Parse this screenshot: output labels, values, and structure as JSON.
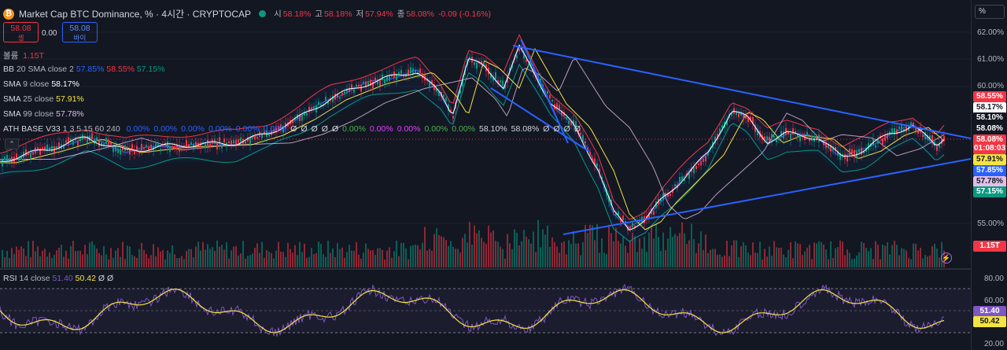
{
  "header": {
    "symbol_title": "Market Cap BTC Dominance, % · 4시간 · CRYPTOCAP",
    "ohlc": [
      {
        "label": "시",
        "value": "58.18%"
      },
      {
        "label": "고",
        "value": "58.18%"
      },
      {
        "label": "저",
        "value": "57.94%"
      },
      {
        "label": "종",
        "value": "58.08%"
      }
    ],
    "change": "-0.09 (-0.16%)",
    "sell": {
      "price": "58.08",
      "label": "셀"
    },
    "spread": "0.00",
    "buy": {
      "price": "58.08",
      "label": "바이"
    },
    "collapse_icon": "chevron-up-icon"
  },
  "indicators": {
    "volume": {
      "name": "볼륨",
      "value": "1.15T"
    },
    "bb": {
      "name": "BB",
      "params": "20 SMA close 2",
      "v1": "57.85%",
      "v2": "58.55%",
      "v3": "57.15%"
    },
    "sma9": {
      "name": "SMA",
      "params": "9 close",
      "value": "58.17%"
    },
    "sma25": {
      "name": "SMA",
      "params": "25 close",
      "value": "57.91%"
    },
    "sma99": {
      "name": "SMA",
      "params": "99 close",
      "value": "57.78%"
    },
    "ath": {
      "name": "ATH BASE V33",
      "params": "1 3 5 15 60 240",
      "values": [
        {
          "text": "0.00%",
          "color": "#2962ff"
        },
        {
          "text": "0.00%",
          "color": "#2962ff"
        },
        {
          "text": "0.00%",
          "color": "#2962ff"
        },
        {
          "text": "0.00%",
          "color": "#2962ff"
        },
        {
          "text": "0.00%",
          "color": "#2962ff"
        },
        {
          "text": "0.00%",
          "color": "#2962ff"
        },
        {
          "text": "Ø",
          "color": "#d1d4dc"
        },
        {
          "text": "Ø",
          "color": "#d1d4dc"
        },
        {
          "text": "Ø",
          "color": "#d1d4dc"
        },
        {
          "text": "Ø",
          "color": "#d1d4dc"
        },
        {
          "text": "Ø",
          "color": "#d1d4dc"
        },
        {
          "text": "0.00%",
          "color": "#4caf50"
        },
        {
          "text": "0.00%",
          "color": "#e040fb"
        },
        {
          "text": "0.00%",
          "color": "#e040fb"
        },
        {
          "text": "0.00%",
          "color": "#4caf50"
        },
        {
          "text": "0.00%",
          "color": "#4caf50"
        },
        {
          "text": "58.10%",
          "color": "#d1d4dc"
        },
        {
          "text": "58.08%",
          "color": "#d1d4dc"
        },
        {
          "text": "Ø",
          "color": "#d1d4dc"
        },
        {
          "text": "Ø",
          "color": "#d1d4dc"
        },
        {
          "text": "Ø",
          "color": "#d1d4dc"
        },
        {
          "text": "Ø",
          "color": "#d1d4dc"
        }
      ]
    },
    "rsi": {
      "name": "RSI",
      "params": "14 close",
      "v1": "51.40",
      "v2": "50.42",
      "extra": "Ø Ø"
    }
  },
  "price_scale": {
    "unit": "%",
    "ticks": [
      "62.00%",
      "61.00%",
      "60.00%",
      "55.00%"
    ],
    "labels": [
      {
        "text": "58.55%",
        "bg": "#f23645",
        "fg": "#ffffff"
      },
      {
        "text": "58.17%",
        "bg": "#ffffff",
        "fg": "#131722"
      },
      {
        "text": "58.10%",
        "bg": "#131722",
        "fg": "#ffffff"
      },
      {
        "text": "58.08%",
        "bg": "#131722",
        "fg": "#ffffff"
      },
      {
        "text": "58.08%",
        "bg": "#f23645",
        "fg": "#ffffff"
      },
      {
        "text": "01:08:03",
        "bg": "#f23645",
        "fg": "#ffffff"
      },
      {
        "text": "57.91%",
        "bg": "#f5e342",
        "fg": "#131722"
      },
      {
        "text": "57.85%",
        "bg": "#2962ff",
        "fg": "#ffffff"
      },
      {
        "text": "57.78%",
        "bg": "#e1bee7",
        "fg": "#131722"
      },
      {
        "text": "57.15%",
        "bg": "#089981",
        "fg": "#ffffff"
      },
      {
        "text": "1.15T",
        "bg": "#f23645",
        "fg": "#ffffff"
      }
    ],
    "rsi_ticks": [
      "80.00",
      "60.00",
      "20.00"
    ],
    "rsi_labels": [
      {
        "text": "51.40",
        "bg": "#7e57c2",
        "fg": "#ffffff"
      },
      {
        "text": "50.42",
        "bg": "#f5e342",
        "fg": "#131722"
      }
    ]
  },
  "colors": {
    "up": "#089981",
    "down": "#f23645",
    "trend": "#2962ff",
    "bb_upper": "#f23645",
    "bb_lower": "#089981",
    "sma9": "#ffffff",
    "sma25": "#f5e342",
    "sma99": "#e1bee7",
    "rsi": "#7e57c2",
    "rsi_ma": "#f5e342"
  }
}
